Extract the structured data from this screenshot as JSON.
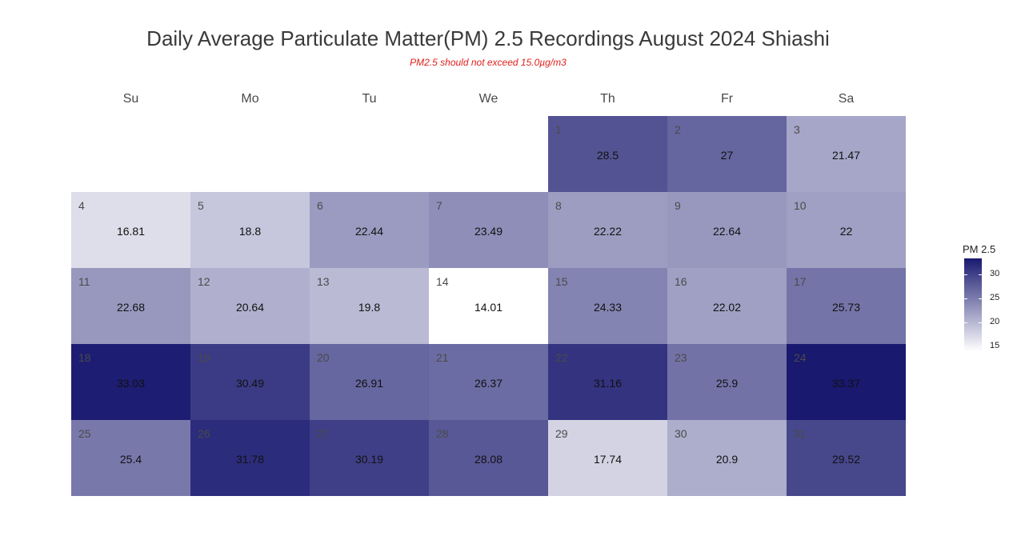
{
  "title": "Daily Average Particulate Matter(PM) 2.5 Recordings August 2024 Shiashi",
  "subtitle": "PM2.5 should not exceed 15.0µg/m3",
  "chart_data": {
    "type": "heatmap",
    "title": "Daily Average Particulate Matter(PM) 2.5 Recordings August 2024 Shiashi",
    "subtitle": "PM2.5 should not exceed 15.0µg/m3",
    "month": "August 2024",
    "weekdays": [
      "Su",
      "Mo",
      "Tu",
      "We",
      "Th",
      "Fr",
      "Sa"
    ],
    "first_weekday_index": 4,
    "days": [
      1,
      2,
      3,
      4,
      5,
      6,
      7,
      8,
      9,
      10,
      11,
      12,
      13,
      14,
      15,
      16,
      17,
      18,
      19,
      20,
      21,
      22,
      23,
      24,
      25,
      26,
      27,
      28,
      29,
      30,
      31
    ],
    "values": [
      28.5,
      27,
      21.47,
      16.81,
      18.8,
      22.44,
      23.49,
      22.22,
      22.64,
      22,
      22.68,
      20.64,
      19.8,
      14.01,
      24.33,
      22.02,
      25.73,
      33.03,
      30.49,
      26.91,
      26.37,
      31.16,
      25.9,
      33.37,
      25.4,
      31.78,
      30.19,
      28.08,
      17.74,
      20.9,
      29.52
    ],
    "value_labels": [
      "28.5",
      "27",
      "21.47",
      "16.81",
      "18.8",
      "22.44",
      "23.49",
      "22.22",
      "22.64",
      "22",
      "22.68",
      "20.64",
      "19.8",
      "14.01",
      "24.33",
      "22.02",
      "25.73",
      "33.03",
      "30.49",
      "26.91",
      "26.37",
      "31.16",
      "25.9",
      "33.37",
      "25.4",
      "31.78",
      "30.19",
      "28.08",
      "17.74",
      "20.9",
      "29.52"
    ],
    "legend": {
      "title": "PM 2.5",
      "ticks": [
        15,
        20,
        25,
        30
      ],
      "tick_labels": [
        "15",
        "20",
        "25",
        "30"
      ],
      "range": [
        14.01,
        33.37
      ],
      "color_low": "#ffffff",
      "color_high": "#191970",
      "placement": "right"
    }
  }
}
